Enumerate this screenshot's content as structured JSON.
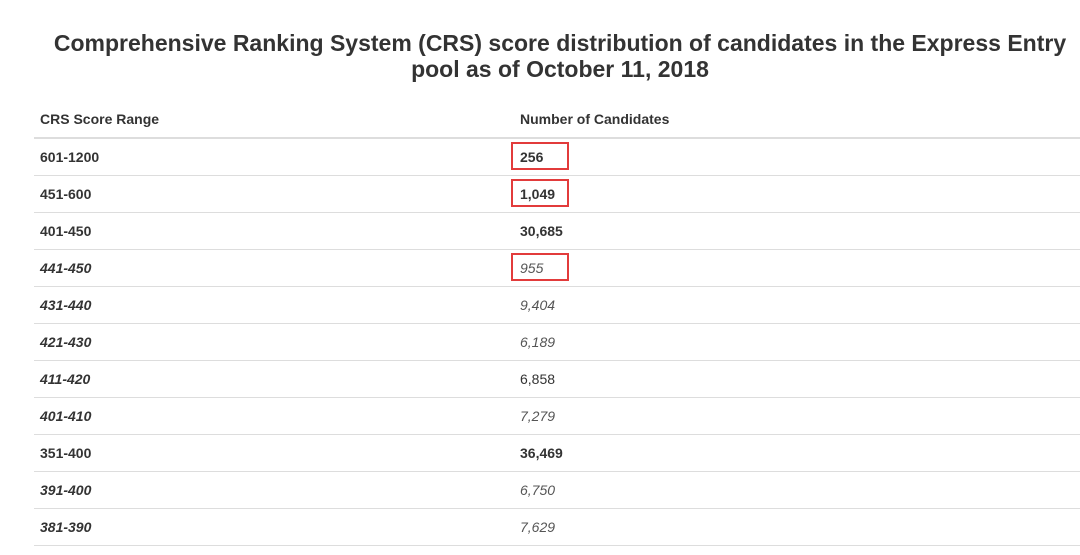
{
  "title": "Comprehensive Ranking System (CRS) score distribution of candidates in the Express Entry pool as of October 11, 2018",
  "table": {
    "headers": [
      "CRS Score Range",
      "Number of Candidates"
    ],
    "rows": [
      {
        "range": "601-1200",
        "count": "256",
        "style": "bold",
        "highlighted": true
      },
      {
        "range": "451-600",
        "count": "1,049",
        "style": "bold",
        "highlighted": true
      },
      {
        "range": "401-450",
        "count": "30,685",
        "style": "bold",
        "highlighted": false
      },
      {
        "range": "441-450",
        "count": "955",
        "style": "sub",
        "highlighted": true
      },
      {
        "range": "431-440",
        "count": "9,404",
        "style": "sub",
        "highlighted": false
      },
      {
        "range": "421-430",
        "count": "6,189",
        "style": "sub",
        "highlighted": false
      },
      {
        "range": "411-420",
        "count": "6,858",
        "style": "sub-plain",
        "highlighted": false
      },
      {
        "range": "401-410",
        "count": "7,279",
        "style": "sub",
        "highlighted": false
      },
      {
        "range": "351-400",
        "count": "36,469",
        "style": "bold",
        "highlighted": false
      },
      {
        "range": "391-400",
        "count": "6,750",
        "style": "sub",
        "highlighted": false
      },
      {
        "range": "381-390",
        "count": "7,629",
        "style": "sub",
        "highlighted": false
      }
    ]
  },
  "colors": {
    "highlight": "#e23b3b",
    "border": "#dddddd",
    "text": "#333333"
  }
}
